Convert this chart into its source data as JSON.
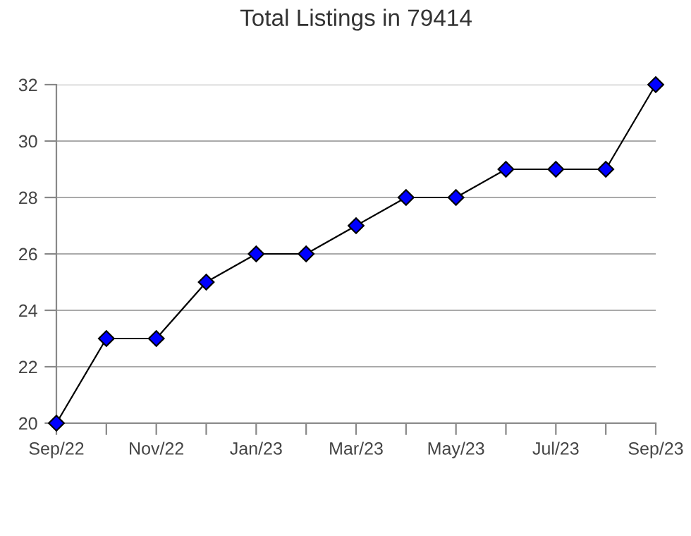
{
  "chart_data": {
    "type": "line",
    "title": "Total Listings in 79414",
    "categories": [
      "Sep/22",
      null,
      "Nov/22",
      null,
      "Jan/23",
      null,
      "Mar/23",
      null,
      "May/23",
      null,
      "Jul/23",
      null,
      "Sep/23"
    ],
    "series": [
      {
        "color": "#0000ff",
        "values": [
          20,
          23,
          23,
          25,
          26,
          26,
          27,
          28,
          28,
          29,
          29,
          29,
          32
        ]
      }
    ],
    "ylim": [
      20,
      32
    ],
    "yticks": [
      20,
      22,
      24,
      26,
      28,
      30,
      32
    ],
    "grid": "y",
    "marker": "diamond",
    "line_style": "solid"
  }
}
